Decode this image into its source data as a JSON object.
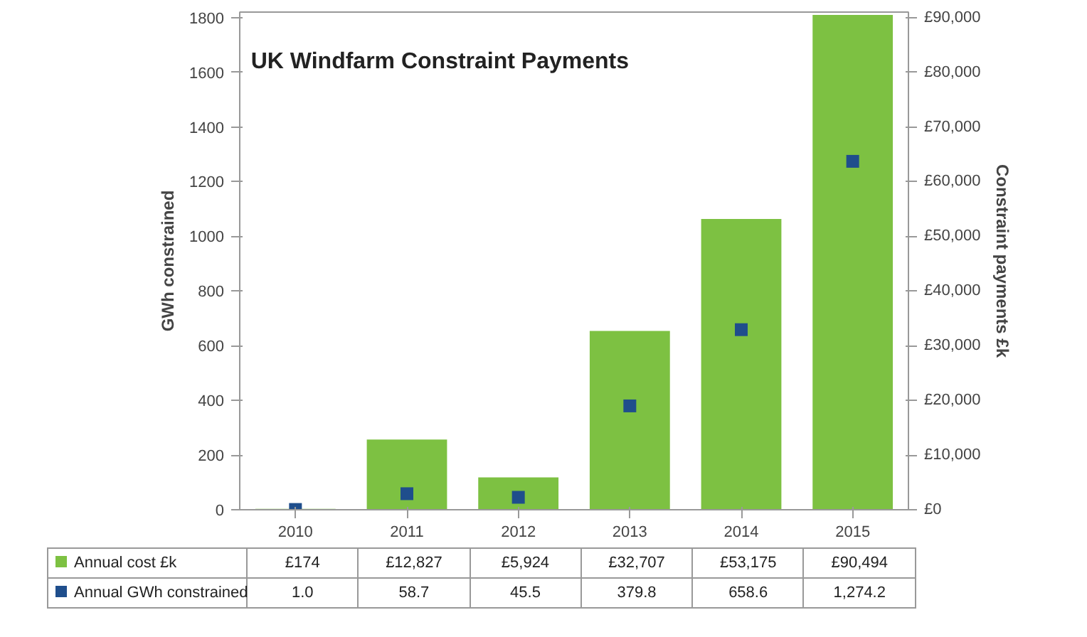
{
  "chart_data": {
    "type": "bar",
    "title": "UK Windfarm Constraint Payments",
    "ylabel": "GWh constrained",
    "y2label": "Constraint payments £k",
    "categories": [
      "2010",
      "2011",
      "2012",
      "2013",
      "2014",
      "2015"
    ],
    "series": [
      {
        "name": "Annual cost £k",
        "axis": "y2",
        "color": "#7dc142",
        "values": [
          174,
          12827,
          5924,
          32707,
          53175,
          90494
        ],
        "value_labels": [
          "£174",
          "£12,827",
          "£5,924",
          "£32,707",
          "£53,175",
          "£90,494"
        ]
      },
      {
        "name": "Annual GWh constrained",
        "type": "scatter",
        "marker": "square",
        "color": "#1f4e8c",
        "values": [
          1.0,
          58.7,
          45.5,
          379.8,
          658.6,
          1274.2
        ],
        "value_labels": [
          "1.0",
          "58.7",
          "45.5",
          "379.8",
          "658.6",
          "1,274.2"
        ]
      }
    ],
    "legend": "bottom left",
    "ylim": [
      0,
      1820
    ],
    "yticks": [
      0,
      200,
      400,
      600,
      800,
      1000,
      1200,
      1400,
      1600,
      1800
    ],
    "y2lim": [
      0,
      91000
    ],
    "y2ticks": [
      {
        "value": 0,
        "label": "£0"
      },
      {
        "value": 10000,
        "label": "£10,000"
      },
      {
        "value": 20000,
        "label": "£20,000"
      },
      {
        "value": 30000,
        "label": "£30,000"
      },
      {
        "value": 40000,
        "label": "£40,000"
      },
      {
        "value": 50000,
        "label": "£50,000"
      },
      {
        "value": 60000,
        "label": "£60,000"
      },
      {
        "value": 70000,
        "label": "£70,000"
      },
      {
        "value": 80000,
        "label": "£80,000"
      },
      {
        "value": 90000,
        "label": "£90,000"
      }
    ]
  }
}
